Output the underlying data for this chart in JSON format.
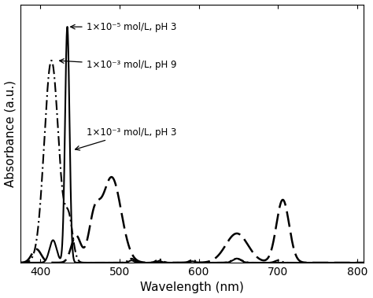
{
  "xlabel": "Wavelength (nm)",
  "ylabel": "Absorbance (a.u.)",
  "xlim": [
    375,
    808
  ],
  "ylim": [
    0,
    1.15
  ],
  "xticks": [
    400,
    500,
    600,
    700,
    800
  ],
  "line_color": "#000000",
  "figsize": [
    4.74,
    3.79
  ],
  "dpi": 100,
  "ann1_text": "1×10⁻⁵ mol/L, pH 3",
  "ann2_text": "1×10⁻³ mol/L, pH 9",
  "ann3_text": "1×10⁻³ mol/L, pH 3"
}
